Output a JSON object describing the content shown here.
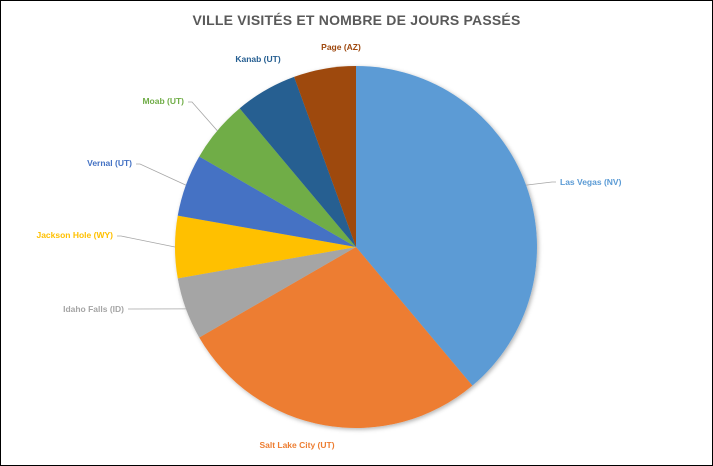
{
  "chart_data": {
    "type": "pie",
    "title": "VILLE VISITÉS ET NOMBRE DE JOURS PASSÉS",
    "slices": [
      {
        "label": "Las Vegas (NV)",
        "value": 7,
        "color": "#5B9BD5"
      },
      {
        "label": "Salt Lake City (UT)",
        "value": 5,
        "color": "#ED7D31"
      },
      {
        "label": "Idaho Falls (ID)",
        "value": 1,
        "color": "#A5A5A5"
      },
      {
        "label": "Jackson Hole (WY)",
        "value": 1,
        "color": "#FFC000"
      },
      {
        "label": "Vernal (UT)",
        "value": 1,
        "color": "#4472C4"
      },
      {
        "label": "Moab (UT)",
        "value": 1,
        "color": "#70AD47"
      },
      {
        "label": "Kanab (UT)",
        "value": 1,
        "color": "#255E91"
      },
      {
        "label": "Page (AZ)",
        "value": 1,
        "color": "#9E480E"
      }
    ],
    "start_angle": "12 o'clock",
    "direction": "clockwise",
    "legend": "none",
    "data_labels": "category names outside with leader lines"
  }
}
